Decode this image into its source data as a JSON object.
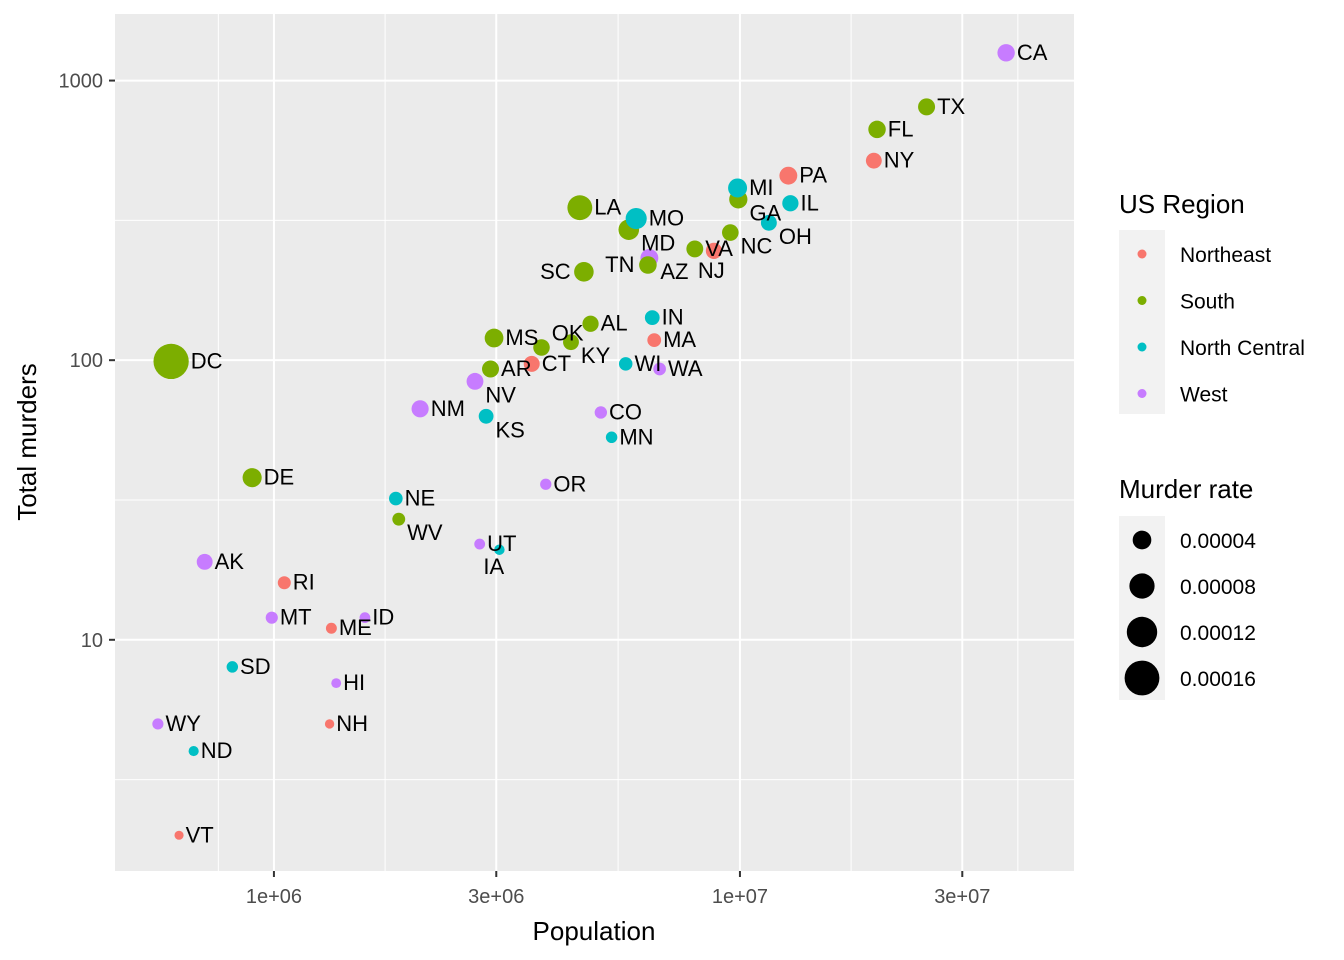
{
  "chart_data": {
    "type": "scatter",
    "title": "",
    "xlabel": "Population",
    "ylabel": "Total murders",
    "xscale": "log10",
    "yscale": "log10",
    "xlim": [
      456000,
      52100000
    ],
    "ylim": [
      1.49,
      1730
    ],
    "xticks": [
      {
        "value": 1000000,
        "label": "1e+06"
      },
      {
        "value": 3000000,
        "label": "3e+06"
      },
      {
        "value": 10000000,
        "label": "1e+07"
      },
      {
        "value": 30000000,
        "label": "3e+07"
      }
    ],
    "yticks": [
      {
        "value": 10,
        "label": "10"
      },
      {
        "value": 100,
        "label": "100"
      },
      {
        "value": 1000,
        "label": "1000"
      }
    ],
    "grid": true,
    "legend_position": "right",
    "color_legend": {
      "title": "US Region",
      "entries": [
        {
          "name": "Northeast",
          "color": "#F8766D"
        },
        {
          "name": "South",
          "color": "#7CAE00"
        },
        {
          "name": "North Central",
          "color": "#00BFC4"
        },
        {
          "name": "West",
          "color": "#C77CFF"
        }
      ]
    },
    "size_legend": {
      "title": "Murder rate",
      "entries": [
        {
          "value": 4e-05,
          "label": "0.00004"
        },
        {
          "value": 8e-05,
          "label": "0.00008"
        },
        {
          "value": 0.00012,
          "label": "0.00012"
        },
        {
          "value": 0.00016,
          "label": "0.00016"
        }
      ]
    },
    "points": [
      {
        "label": "AL",
        "region": "South",
        "population": 4779736,
        "total": 135
      },
      {
        "label": "AK",
        "region": "West",
        "population": 710231,
        "total": 19
      },
      {
        "label": "AZ",
        "region": "West",
        "population": 6392017,
        "total": 232
      },
      {
        "label": "AR",
        "region": "South",
        "population": 2915918,
        "total": 93
      },
      {
        "label": "CA",
        "region": "West",
        "population": 37253956,
        "total": 1257
      },
      {
        "label": "CO",
        "region": "West",
        "population": 5029196,
        "total": 65
      },
      {
        "label": "CT",
        "region": "Northeast",
        "population": 3574097,
        "total": 97
      },
      {
        "label": "DE",
        "region": "South",
        "population": 897934,
        "total": 38
      },
      {
        "label": "DC",
        "region": "South",
        "population": 601723,
        "total": 99
      },
      {
        "label": "FL",
        "region": "South",
        "population": 19687653,
        "total": 669
      },
      {
        "label": "GA",
        "region": "South",
        "population": 9920000,
        "total": 376
      },
      {
        "label": "HI",
        "region": "West",
        "population": 1360301,
        "total": 7
      },
      {
        "label": "ID",
        "region": "West",
        "population": 1567582,
        "total": 12
      },
      {
        "label": "IL",
        "region": "North Central",
        "population": 12830632,
        "total": 364
      },
      {
        "label": "IN",
        "region": "North Central",
        "population": 6483802,
        "total": 142
      },
      {
        "label": "IA",
        "region": "North Central",
        "population": 3046355,
        "total": 21
      },
      {
        "label": "KS",
        "region": "North Central",
        "population": 2853118,
        "total": 63
      },
      {
        "label": "KY",
        "region": "South",
        "population": 4339367,
        "total": 116
      },
      {
        "label": "LA",
        "region": "South",
        "population": 4533372,
        "total": 351
      },
      {
        "label": "ME",
        "region": "Northeast",
        "population": 1328361,
        "total": 11
      },
      {
        "label": "MD",
        "region": "South",
        "population": 5773552,
        "total": 293
      },
      {
        "label": "MA",
        "region": "Northeast",
        "population": 6547629,
        "total": 118
      },
      {
        "label": "MI",
        "region": "North Central",
        "population": 9883640,
        "total": 413
      },
      {
        "label": "MN",
        "region": "North Central",
        "population": 5303925,
        "total": 53
      },
      {
        "label": "MS",
        "region": "South",
        "population": 2967297,
        "total": 120
      },
      {
        "label": "MO",
        "region": "North Central",
        "population": 5988927,
        "total": 321
      },
      {
        "label": "MT",
        "region": "West",
        "population": 989415,
        "total": 12
      },
      {
        "label": "NE",
        "region": "North Central",
        "population": 1826341,
        "total": 32
      },
      {
        "label": "NV",
        "region": "West",
        "population": 2700551,
        "total": 84
      },
      {
        "label": "NH",
        "region": "Northeast",
        "population": 1316470,
        "total": 5
      },
      {
        "label": "NJ",
        "region": "Northeast",
        "population": 8791894,
        "total": 246
      },
      {
        "label": "NM",
        "region": "West",
        "population": 2059179,
        "total": 67
      },
      {
        "label": "NY",
        "region": "Northeast",
        "population": 19378102,
        "total": 517
      },
      {
        "label": "NC",
        "region": "South",
        "population": 9535483,
        "total": 286
      },
      {
        "label": "ND",
        "region": "North Central",
        "population": 672591,
        "total": 4
      },
      {
        "label": "OH",
        "region": "North Central",
        "population": 11536504,
        "total": 310
      },
      {
        "label": "OK",
        "region": "South",
        "population": 3751351,
        "total": 111
      },
      {
        "label": "OR",
        "region": "West",
        "population": 3831074,
        "total": 36
      },
      {
        "label": "PA",
        "region": "Northeast",
        "population": 12702379,
        "total": 457
      },
      {
        "label": "RI",
        "region": "Northeast",
        "population": 1052567,
        "total": 16
      },
      {
        "label": "SC",
        "region": "South",
        "population": 4625364,
        "total": 207
      },
      {
        "label": "SD",
        "region": "North Central",
        "population": 814180,
        "total": 8
      },
      {
        "label": "TN",
        "region": "South",
        "population": 6346105,
        "total": 219
      },
      {
        "label": "TX",
        "region": "South",
        "population": 25145561,
        "total": 805
      },
      {
        "label": "UT",
        "region": "West",
        "population": 2763885,
        "total": 22
      },
      {
        "label": "VT",
        "region": "Northeast",
        "population": 625741,
        "total": 2
      },
      {
        "label": "VA",
        "region": "South",
        "population": 8001024,
        "total": 250
      },
      {
        "label": "WA",
        "region": "West",
        "population": 6724540,
        "total": 93
      },
      {
        "label": "WV",
        "region": "South",
        "population": 1852994,
        "total": 27
      },
      {
        "label": "WI",
        "region": "North Central",
        "population": 5686986,
        "total": 97
      },
      {
        "label": "WY",
        "region": "West",
        "population": 563626,
        "total": 5
      }
    ]
  }
}
